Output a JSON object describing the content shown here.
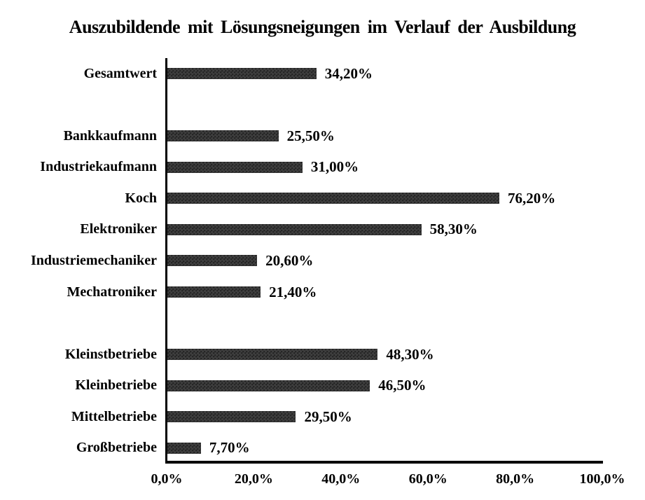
{
  "chart_data": {
    "type": "bar",
    "orientation": "horizontal",
    "title": "Auszubildende mit Lösungsneigungen im Verlauf der Ausbildung",
    "xlabel": "",
    "ylabel": "",
    "xlim": [
      0,
      100
    ],
    "grid": false,
    "legend": false,
    "bar_color": "#3e3e3e",
    "axis_color": "#000000",
    "rows": [
      {
        "label": "Gesamtwert",
        "value": 34.2,
        "value_label": "34,20%"
      },
      {
        "spacer": true
      },
      {
        "label": "Bankkaufmann",
        "value": 25.5,
        "value_label": "25,50%"
      },
      {
        "label": "Industriekaufmann",
        "value": 31.0,
        "value_label": "31,00%"
      },
      {
        "label": "Koch",
        "value": 76.2,
        "value_label": "76,20%"
      },
      {
        "label": "Elektroniker",
        "value": 58.3,
        "value_label": "58,30%"
      },
      {
        "label": "Industriemechaniker",
        "value": 20.6,
        "value_label": "20,60%"
      },
      {
        "label": "Mechatroniker",
        "value": 21.4,
        "value_label": "21,40%"
      },
      {
        "spacer": true
      },
      {
        "label": "Kleinstbetriebe",
        "value": 48.3,
        "value_label": "48,30%"
      },
      {
        "label": "Kleinbetriebe",
        "value": 46.5,
        "value_label": "46,50%"
      },
      {
        "label": "Mittelbetriebe",
        "value": 29.5,
        "value_label": "29,50%"
      },
      {
        "label": "Großbetriebe",
        "value": 7.7,
        "value_label": "7,70%"
      }
    ],
    "x_ticks": [
      {
        "value": 0,
        "label": "0,0%"
      },
      {
        "value": 20,
        "label": "20,0%"
      },
      {
        "value": 40,
        "label": "40,0%"
      },
      {
        "value": 60,
        "label": "60,0%"
      },
      {
        "value": 80,
        "label": "80,0%"
      },
      {
        "value": 100,
        "label": "100,0%"
      }
    ]
  }
}
